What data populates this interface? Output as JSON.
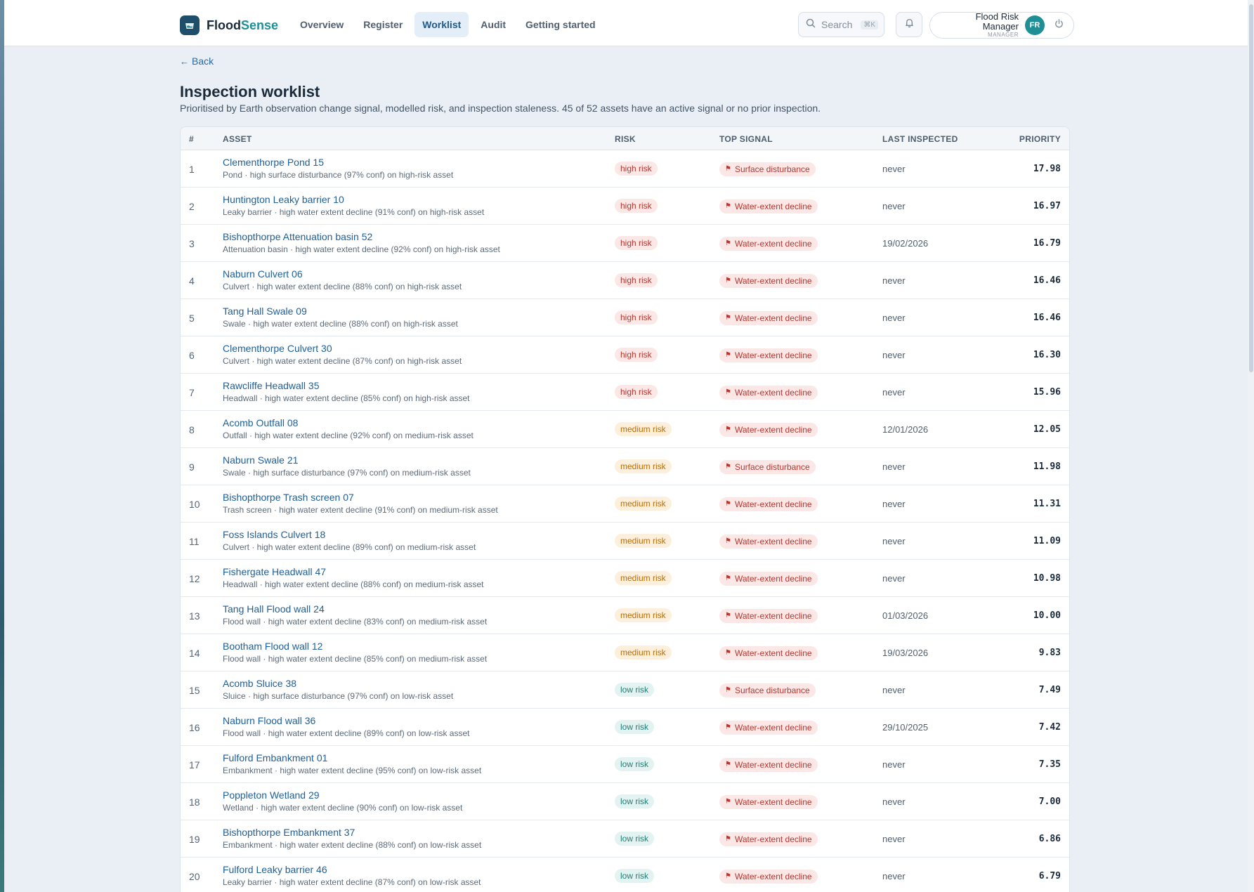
{
  "app": {
    "brand_first": "Flood",
    "brand_second": "Sense",
    "accent_color": "#1f8f96"
  },
  "nav": {
    "items": [
      {
        "label": "Overview",
        "active": false
      },
      {
        "label": "Register",
        "active": false
      },
      {
        "label": "Worklist",
        "active": true
      },
      {
        "label": "Audit",
        "active": false
      },
      {
        "label": "Getting started",
        "active": false
      }
    ]
  },
  "search": {
    "placeholder": "Search",
    "shortcut": "⌘K"
  },
  "user": {
    "name": "Flood Risk Manager",
    "role": "MANAGER",
    "initials": "FR"
  },
  "page": {
    "back_label": "Back",
    "title": "Inspection worklist",
    "subtitle": "Prioritised by Earth observation change signal, modelled risk, and inspection staleness. 45 of 52 assets have an active signal or no prior inspection."
  },
  "table": {
    "columns": [
      "#",
      "ASSET",
      "RISK",
      "TOP SIGNAL",
      "LAST INSPECTED",
      "PRIORITY"
    ],
    "rows": [
      {
        "num": "1",
        "name": "Clementhorpe Pond 15",
        "desc": "Pond · high surface disturbance (97% conf) on high-risk asset",
        "risk": "high risk",
        "level": "high",
        "signal": "Surface disturbance",
        "last": "never",
        "priority": "17.98"
      },
      {
        "num": "2",
        "name": "Huntington Leaky barrier 10",
        "desc": "Leaky barrier · high water extent decline (91% conf) on high-risk asset",
        "risk": "high risk",
        "level": "high",
        "signal": "Water-extent decline",
        "last": "never",
        "priority": "16.97"
      },
      {
        "num": "3",
        "name": "Bishopthorpe Attenuation basin 52",
        "desc": "Attenuation basin · high water extent decline (92% conf) on high-risk asset",
        "risk": "high risk",
        "level": "high",
        "signal": "Water-extent decline",
        "last": "19/02/2026",
        "priority": "16.79"
      },
      {
        "num": "4",
        "name": "Naburn Culvert 06",
        "desc": "Culvert · high water extent decline (88% conf) on high-risk asset",
        "risk": "high risk",
        "level": "high",
        "signal": "Water-extent decline",
        "last": "never",
        "priority": "16.46"
      },
      {
        "num": "5",
        "name": "Tang Hall Swale 09",
        "desc": "Swale · high water extent decline (88% conf) on high-risk asset",
        "risk": "high risk",
        "level": "high",
        "signal": "Water-extent decline",
        "last": "never",
        "priority": "16.46"
      },
      {
        "num": "6",
        "name": "Clementhorpe Culvert 30",
        "desc": "Culvert · high water extent decline (87% conf) on high-risk asset",
        "risk": "high risk",
        "level": "high",
        "signal": "Water-extent decline",
        "last": "never",
        "priority": "16.30"
      },
      {
        "num": "7",
        "name": "Rawcliffe Headwall 35",
        "desc": "Headwall · high water extent decline (85% conf) on high-risk asset",
        "risk": "high risk",
        "level": "high",
        "signal": "Water-extent decline",
        "last": "never",
        "priority": "15.96"
      },
      {
        "num": "8",
        "name": "Acomb Outfall 08",
        "desc": "Outfall · high water extent decline (92% conf) on medium-risk asset",
        "risk": "medium risk",
        "level": "medium",
        "signal": "Water-extent decline",
        "last": "12/01/2026",
        "priority": "12.05"
      },
      {
        "num": "9",
        "name": "Naburn Swale 21",
        "desc": "Swale · high surface disturbance (97% conf) on medium-risk asset",
        "risk": "medium risk",
        "level": "medium",
        "signal": "Surface disturbance",
        "last": "never",
        "priority": "11.98"
      },
      {
        "num": "10",
        "name": "Bishopthorpe Trash screen 07",
        "desc": "Trash screen · high water extent decline (91% conf) on medium-risk asset",
        "risk": "medium risk",
        "level": "medium",
        "signal": "Water-extent decline",
        "last": "never",
        "priority": "11.31"
      },
      {
        "num": "11",
        "name": "Foss Islands Culvert 18",
        "desc": "Culvert · high water extent decline (89% conf) on medium-risk asset",
        "risk": "medium risk",
        "level": "medium",
        "signal": "Water-extent decline",
        "last": "never",
        "priority": "11.09"
      },
      {
        "num": "12",
        "name": "Fishergate Headwall 47",
        "desc": "Headwall · high water extent decline (88% conf) on medium-risk asset",
        "risk": "medium risk",
        "level": "medium",
        "signal": "Water-extent decline",
        "last": "never",
        "priority": "10.98"
      },
      {
        "num": "13",
        "name": "Tang Hall Flood wall 24",
        "desc": "Flood wall · high water extent decline (83% conf) on medium-risk asset",
        "risk": "medium risk",
        "level": "medium",
        "signal": "Water-extent decline",
        "last": "01/03/2026",
        "priority": "10.00"
      },
      {
        "num": "14",
        "name": "Bootham Flood wall 12",
        "desc": "Flood wall · high water extent decline (85% conf) on medium-risk asset",
        "risk": "medium risk",
        "level": "medium",
        "signal": "Water-extent decline",
        "last": "19/03/2026",
        "priority": "9.83"
      },
      {
        "num": "15",
        "name": "Acomb Sluice 38",
        "desc": "Sluice · high surface disturbance (97% conf) on low-risk asset",
        "risk": "low risk",
        "level": "low",
        "signal": "Surface disturbance",
        "last": "never",
        "priority": "7.49"
      },
      {
        "num": "16",
        "name": "Naburn Flood wall 36",
        "desc": "Flood wall · high water extent decline (89% conf) on low-risk asset",
        "risk": "low risk",
        "level": "low",
        "signal": "Water-extent decline",
        "last": "29/10/2025",
        "priority": "7.42"
      },
      {
        "num": "17",
        "name": "Fulford Embankment 01",
        "desc": "Embankment · high water extent decline (95% conf) on low-risk asset",
        "risk": "low risk",
        "level": "low",
        "signal": "Water-extent decline",
        "last": "never",
        "priority": "7.35"
      },
      {
        "num": "18",
        "name": "Poppleton Wetland 29",
        "desc": "Wetland · high water extent decline (90% conf) on low-risk asset",
        "risk": "low risk",
        "level": "low",
        "signal": "Water-extent decline",
        "last": "never",
        "priority": "7.00"
      },
      {
        "num": "19",
        "name": "Bishopthorpe Embankment 37",
        "desc": "Embankment · high water extent decline (88% conf) on low-risk asset",
        "risk": "low risk",
        "level": "low",
        "signal": "Water-extent decline",
        "last": "never",
        "priority": "6.86"
      },
      {
        "num": "20",
        "name": "Fulford Leaky barrier 46",
        "desc": "Leaky barrier · high water extent decline (87% conf) on low-risk asset",
        "risk": "low risk",
        "level": "low",
        "signal": "Water-extent decline",
        "last": "never",
        "priority": "6.79"
      }
    ]
  }
}
